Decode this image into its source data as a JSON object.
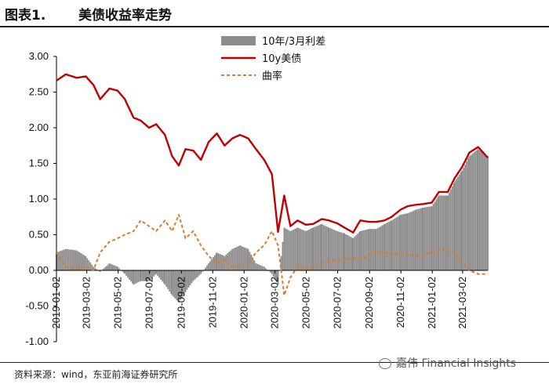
{
  "header": {
    "figure_label": "图表1.",
    "title": "美债收益率走势"
  },
  "footer": {
    "source": "资料来源：wind，东亚前海证券研究所",
    "watermark": "嘉伟 Financial Insights"
  },
  "colors": {
    "bars": "#8c8c8c",
    "yield_line": "#c00000",
    "curve_line": "#d97b2b"
  },
  "chart_data": {
    "type": "bar",
    "legend_position": "top-center",
    "grid": false,
    "ylim": [
      -1.0,
      3.0
    ],
    "yticks": [
      "3.00",
      "2.50",
      "2.00",
      "1.50",
      "1.00",
      "0.50",
      "0.00",
      "-0.50",
      "-1.00"
    ],
    "x_ticks": [
      "2019-01-02",
      "2019-03-02",
      "2019-05-02",
      "2019-07-02",
      "2019-09-02",
      "2019-11-02",
      "2020-01-02",
      "2020-03-02",
      "2020-05-02",
      "2020-07-02",
      "2020-09-02",
      "2020-11-02",
      "2021-01-02",
      "2021-03-02"
    ],
    "x_start": "2019-01-02",
    "x_end": "2021-04-20",
    "series": [
      {
        "name": "10年/3月利差",
        "type": "bar",
        "points": [
          [
            "2019-01-02",
            0.25
          ],
          [
            "2019-01-20",
            0.3
          ],
          [
            "2019-02-10",
            0.28
          ],
          [
            "2019-02-28",
            0.2
          ],
          [
            "2019-03-15",
            0.05
          ],
          [
            "2019-03-28",
            -0.02
          ],
          [
            "2019-04-15",
            0.1
          ],
          [
            "2019-05-01",
            0.05
          ],
          [
            "2019-05-15",
            -0.05
          ],
          [
            "2019-06-01",
            -0.2
          ],
          [
            "2019-06-15",
            -0.15
          ],
          [
            "2019-07-01",
            -0.15
          ],
          [
            "2019-07-15",
            -0.05
          ],
          [
            "2019-08-01",
            -0.2
          ],
          [
            "2019-08-15",
            -0.35
          ],
          [
            "2019-08-28",
            -0.45
          ],
          [
            "2019-09-10",
            -0.3
          ],
          [
            "2019-09-25",
            -0.15
          ],
          [
            "2019-10-10",
            -0.05
          ],
          [
            "2019-10-25",
            0.1
          ],
          [
            "2019-11-10",
            0.25
          ],
          [
            "2019-11-25",
            0.2
          ],
          [
            "2019-12-10",
            0.3
          ],
          [
            "2019-12-25",
            0.35
          ],
          [
            "2020-01-10",
            0.3
          ],
          [
            "2020-01-25",
            0.1
          ],
          [
            "2020-02-10",
            0.05
          ],
          [
            "2020-02-25",
            -0.05
          ],
          [
            "2020-03-08",
            -0.2
          ],
          [
            "2020-03-20",
            0.6
          ],
          [
            "2020-04-01",
            0.55
          ],
          [
            "2020-04-15",
            0.6
          ],
          [
            "2020-05-01",
            0.55
          ],
          [
            "2020-05-15",
            0.6
          ],
          [
            "2020-06-01",
            0.65
          ],
          [
            "2020-06-15",
            0.6
          ],
          [
            "2020-07-01",
            0.55
          ],
          [
            "2020-07-15",
            0.52
          ],
          [
            "2020-08-01",
            0.45
          ],
          [
            "2020-08-15",
            0.55
          ],
          [
            "2020-09-01",
            0.58
          ],
          [
            "2020-09-15",
            0.58
          ],
          [
            "2020-10-01",
            0.65
          ],
          [
            "2020-10-15",
            0.7
          ],
          [
            "2020-11-01",
            0.78
          ],
          [
            "2020-11-15",
            0.8
          ],
          [
            "2020-12-01",
            0.85
          ],
          [
            "2020-12-15",
            0.88
          ],
          [
            "2021-01-01",
            0.9
          ],
          [
            "2021-01-15",
            1.05
          ],
          [
            "2021-02-01",
            1.05
          ],
          [
            "2021-02-15",
            1.25
          ],
          [
            "2021-03-01",
            1.4
          ],
          [
            "2021-03-15",
            1.6
          ],
          [
            "2021-04-01",
            1.7
          ],
          [
            "2021-04-20",
            1.6
          ]
        ]
      },
      {
        "name": "10y美债",
        "type": "line",
        "points": [
          [
            "2019-01-02",
            2.66
          ],
          [
            "2019-01-20",
            2.75
          ],
          [
            "2019-02-10",
            2.7
          ],
          [
            "2019-02-28",
            2.72
          ],
          [
            "2019-03-15",
            2.6
          ],
          [
            "2019-03-28",
            2.4
          ],
          [
            "2019-04-15",
            2.55
          ],
          [
            "2019-05-01",
            2.52
          ],
          [
            "2019-05-15",
            2.4
          ],
          [
            "2019-06-01",
            2.14
          ],
          [
            "2019-06-15",
            2.1
          ],
          [
            "2019-07-01",
            2.0
          ],
          [
            "2019-07-15",
            2.05
          ],
          [
            "2019-08-01",
            1.9
          ],
          [
            "2019-08-15",
            1.6
          ],
          [
            "2019-08-28",
            1.47
          ],
          [
            "2019-09-10",
            1.7
          ],
          [
            "2019-09-25",
            1.68
          ],
          [
            "2019-10-10",
            1.55
          ],
          [
            "2019-10-25",
            1.8
          ],
          [
            "2019-11-10",
            1.92
          ],
          [
            "2019-11-25",
            1.75
          ],
          [
            "2019-12-10",
            1.85
          ],
          [
            "2019-12-25",
            1.9
          ],
          [
            "2020-01-10",
            1.85
          ],
          [
            "2020-01-25",
            1.7
          ],
          [
            "2020-02-10",
            1.55
          ],
          [
            "2020-02-25",
            1.35
          ],
          [
            "2020-03-08",
            0.54
          ],
          [
            "2020-03-20",
            1.05
          ],
          [
            "2020-04-01",
            0.62
          ],
          [
            "2020-04-15",
            0.7
          ],
          [
            "2020-05-01",
            0.64
          ],
          [
            "2020-05-15",
            0.65
          ],
          [
            "2020-06-01",
            0.72
          ],
          [
            "2020-06-15",
            0.7
          ],
          [
            "2020-07-01",
            0.66
          ],
          [
            "2020-07-15",
            0.6
          ],
          [
            "2020-08-01",
            0.53
          ],
          [
            "2020-08-15",
            0.7
          ],
          [
            "2020-09-01",
            0.68
          ],
          [
            "2020-09-15",
            0.68
          ],
          [
            "2020-10-01",
            0.7
          ],
          [
            "2020-10-15",
            0.75
          ],
          [
            "2020-11-01",
            0.85
          ],
          [
            "2020-11-15",
            0.9
          ],
          [
            "2020-12-01",
            0.92
          ],
          [
            "2020-12-15",
            0.93
          ],
          [
            "2021-01-01",
            0.95
          ],
          [
            "2021-01-15",
            1.1
          ],
          [
            "2021-02-01",
            1.1
          ],
          [
            "2021-02-15",
            1.3
          ],
          [
            "2021-03-01",
            1.45
          ],
          [
            "2021-03-15",
            1.65
          ],
          [
            "2021-04-01",
            1.73
          ],
          [
            "2021-04-20",
            1.58
          ]
        ]
      },
      {
        "name": "曲率",
        "type": "line",
        "dashed": true,
        "points": [
          [
            "2019-01-02",
            0.25
          ],
          [
            "2019-01-20",
            0.05
          ],
          [
            "2019-02-10",
            0.02
          ],
          [
            "2019-02-28",
            0.05
          ],
          [
            "2019-03-15",
            0.0
          ],
          [
            "2019-03-28",
            0.25
          ],
          [
            "2019-04-15",
            0.4
          ],
          [
            "2019-05-01",
            0.45
          ],
          [
            "2019-05-15",
            0.5
          ],
          [
            "2019-06-01",
            0.55
          ],
          [
            "2019-06-15",
            0.7
          ],
          [
            "2019-07-01",
            0.62
          ],
          [
            "2019-07-15",
            0.55
          ],
          [
            "2019-08-01",
            0.7
          ],
          [
            "2019-08-15",
            0.55
          ],
          [
            "2019-08-28",
            0.78
          ],
          [
            "2019-09-10",
            0.45
          ],
          [
            "2019-09-25",
            0.55
          ],
          [
            "2019-10-10",
            0.35
          ],
          [
            "2019-10-25",
            0.2
          ],
          [
            "2019-11-10",
            0.1
          ],
          [
            "2019-11-25",
            0.15
          ],
          [
            "2019-12-10",
            0.05
          ],
          [
            "2019-12-25",
            0.05
          ],
          [
            "2020-01-10",
            0.1
          ],
          [
            "2020-01-25",
            0.25
          ],
          [
            "2020-02-10",
            0.35
          ],
          [
            "2020-02-25",
            0.55
          ],
          [
            "2020-03-08",
            0.35
          ],
          [
            "2020-03-20",
            -0.35
          ],
          [
            "2020-04-01",
            -0.1
          ],
          [
            "2020-04-15",
            0.05
          ],
          [
            "2020-05-01",
            0.02
          ],
          [
            "2020-05-15",
            0.05
          ],
          [
            "2020-06-01",
            0.1
          ],
          [
            "2020-06-15",
            0.12
          ],
          [
            "2020-07-01",
            0.15
          ],
          [
            "2020-07-15",
            0.15
          ],
          [
            "2020-08-01",
            0.18
          ],
          [
            "2020-08-15",
            0.15
          ],
          [
            "2020-09-01",
            0.22
          ],
          [
            "2020-09-15",
            0.25
          ],
          [
            "2020-10-01",
            0.25
          ],
          [
            "2020-10-15",
            0.22
          ],
          [
            "2020-11-01",
            0.25
          ],
          [
            "2020-11-15",
            0.22
          ],
          [
            "2020-12-01",
            0.2
          ],
          [
            "2020-12-15",
            0.22
          ],
          [
            "2021-01-01",
            0.25
          ],
          [
            "2021-01-15",
            0.3
          ],
          [
            "2021-02-01",
            0.28
          ],
          [
            "2021-02-15",
            0.25
          ],
          [
            "2021-03-01",
            0.1
          ],
          [
            "2021-03-15",
            0.0
          ],
          [
            "2021-04-01",
            -0.05
          ],
          [
            "2021-04-20",
            -0.05
          ]
        ]
      }
    ]
  }
}
